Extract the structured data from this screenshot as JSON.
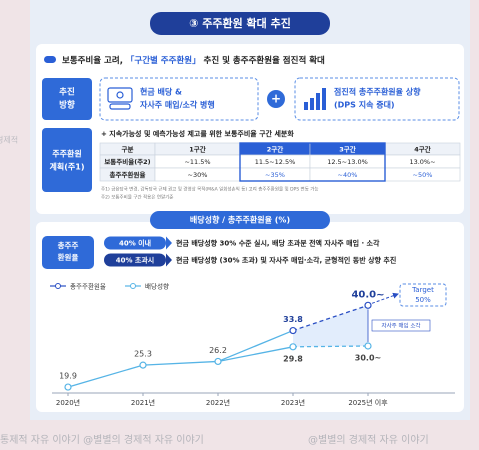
{
  "header": {
    "title": "③ 주주환원 확대 추진"
  },
  "intro": {
    "before": "보통주비율 고려, ",
    "highlight": "「구간별 주주환원」",
    "after": " 추진 및 총주주환원율 점진적 확대"
  },
  "direction": {
    "label_lines": [
      "추진",
      "방향"
    ],
    "plus": "+",
    "items": [
      {
        "lines": [
          "현금 배당 &",
          "자사주 매입/소각 병행"
        ]
      },
      {
        "lines": [
          "점진적 총주주환원율 상향",
          "(DPS 지속 증대)"
        ]
      }
    ]
  },
  "plan": {
    "label_lines": [
      "주주환원",
      "계획(주1)"
    ],
    "note": "+ 지속가능성 및 예측가능성 제고를 위한 보통주비율 구간 세분화"
  },
  "table": {
    "header": [
      "구분",
      "1구간",
      "2구간",
      "3구간",
      "4구간"
    ],
    "rows": [
      [
        "보통주비율(주2)",
        "~11.5%",
        "11.5~12.5%",
        "12.5~13.0%",
        "13.0%~"
      ],
      [
        "총주주환원율",
        "~30%",
        "~35%",
        "~40%",
        "~50%"
      ]
    ]
  },
  "footnotes": [
    "주1) 금융당국 변경, 감독당국 규제 권고 및 경영상 목적(M&A 일회성손익 등) 고려 총주주환원율 및 DPS 변동 가능",
    "주2) 보통주비율 구간 적용은 연말기준"
  ],
  "payout": {
    "title": "배당성향 / 총주주환원율 (%)",
    "label_lines": [
      "총주주",
      "환원율"
    ],
    "rules": [
      {
        "condition": "40% 이내",
        "text": "현금 배당성향 30% 수준 실시, 배당 초과분 전액 자사주 매입 · 소각"
      },
      {
        "condition": "40% 초과시",
        "text": "현금 배당성향 (30% 초과) 및 자사주 매입·소각, 균형적인 동반 상향 추진"
      }
    ]
  },
  "chart_data": {
    "type": "line",
    "categories": [
      "2020년",
      "2021년",
      "2022년",
      "2023년",
      "2025년 이후"
    ],
    "series": [
      {
        "name": "총주주환원율",
        "color": "#2a4fc4",
        "values": [
          19.9,
          25.3,
          26.2,
          33.8,
          40.0
        ],
        "value_labels": [
          "19.9",
          "25.3",
          "26.2",
          "33.8",
          "40.0~"
        ]
      },
      {
        "name": "배당성향",
        "color": "#56b4e6",
        "values": [
          19.9,
          25.3,
          26.2,
          29.8,
          30.0
        ],
        "value_labels": [
          null,
          null,
          null,
          "29.8",
          "30.0~"
        ]
      }
    ],
    "ylim": [
      15,
      45
    ],
    "annotations": {
      "target": [
        "Target",
        "50%"
      ],
      "buyback": "자사주 매입 소각"
    }
  },
  "watermark": [
    "경제적",
    "통제적 자유 이야기 @별별의 경제적 자유 이야기",
    "@별별의 경제적 자유 이야기"
  ]
}
